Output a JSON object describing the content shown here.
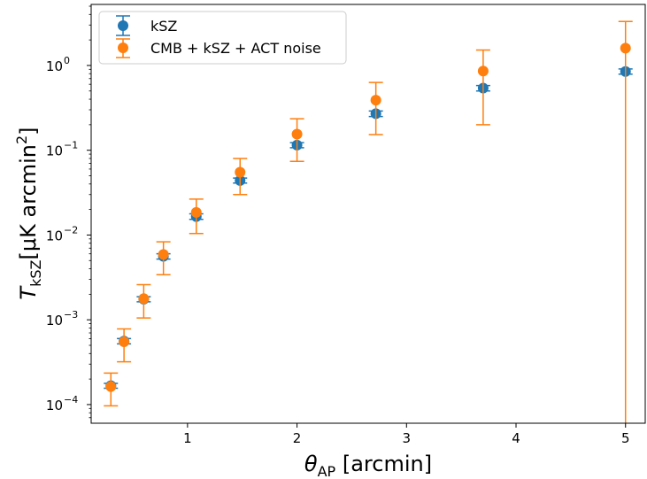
{
  "chart_data": {
    "type": "scatter",
    "yscale": "log",
    "xlabel": {
      "main": "θ",
      "sub": "AP",
      "rest": " [arcmin]"
    },
    "ylabel": {
      "main": "T",
      "sub": "kSZ",
      "rest_pre": "[μK arcmin",
      "sup": "2",
      "rest_post": "]"
    },
    "xlim": [
      0.12,
      5.18
    ],
    "ylim_exp": [
      -4.22,
      0.72
    ],
    "x_ticks": [
      {
        "value": 1,
        "label": "1"
      },
      {
        "value": 2,
        "label": "2"
      },
      {
        "value": 3,
        "label": "3"
      },
      {
        "value": 4,
        "label": "4"
      },
      {
        "value": 5,
        "label": "5"
      }
    ],
    "y_ticks": [
      {
        "exp": -4,
        "label": "10",
        "sup": "−4"
      },
      {
        "exp": -3,
        "label": "10",
        "sup": "−3"
      },
      {
        "exp": -2,
        "label": "10",
        "sup": "−2"
      },
      {
        "exp": -1,
        "label": "10",
        "sup": "−1"
      },
      {
        "exp": 0,
        "label": "10",
        "sup": "0"
      }
    ],
    "grid": false,
    "legend_position": "top-left",
    "series": [
      {
        "name": "kSZ",
        "color": "#1f77b4",
        "points": [
          {
            "x": 0.3,
            "y": 0.000167,
            "lo": 0.000156,
            "hi": 0.000178
          },
          {
            "x": 0.42,
            "y": 0.00056,
            "lo": 0.00052,
            "hi": 0.0006
          },
          {
            "x": 0.6,
            "y": 0.00175,
            "lo": 0.00163,
            "hi": 0.00187
          },
          {
            "x": 0.78,
            "y": 0.0056,
            "lo": 0.0052,
            "hi": 0.006
          },
          {
            "x": 1.08,
            "y": 0.0165,
            "lo": 0.0153,
            "hi": 0.0178
          },
          {
            "x": 1.48,
            "y": 0.044,
            "lo": 0.041,
            "hi": 0.047
          },
          {
            "x": 2.0,
            "y": 0.115,
            "lo": 0.107,
            "hi": 0.123
          },
          {
            "x": 2.72,
            "y": 0.27,
            "lo": 0.25,
            "hi": 0.29
          },
          {
            "x": 3.7,
            "y": 0.54,
            "lo": 0.5,
            "hi": 0.58
          },
          {
            "x": 5.0,
            "y": 0.85,
            "lo": 0.79,
            "hi": 0.91
          }
        ]
      },
      {
        "name": "CMB + kSZ + ACT noise",
        "color": "#ff7f0e",
        "points": [
          {
            "x": 0.3,
            "y": 0.000163,
            "lo": 9.65e-05,
            "hi": 0.000235
          },
          {
            "x": 0.42,
            "y": 0.00055,
            "lo": 0.00032,
            "hi": 0.00078
          },
          {
            "x": 0.6,
            "y": 0.00178,
            "lo": 0.00105,
            "hi": 0.0026
          },
          {
            "x": 0.78,
            "y": 0.0059,
            "lo": 0.0034,
            "hi": 0.0083
          },
          {
            "x": 1.08,
            "y": 0.0185,
            "lo": 0.0104,
            "hi": 0.0265
          },
          {
            "x": 1.48,
            "y": 0.055,
            "lo": 0.03,
            "hi": 0.08
          },
          {
            "x": 2.0,
            "y": 0.155,
            "lo": 0.074,
            "hi": 0.235
          },
          {
            "x": 2.72,
            "y": 0.39,
            "lo": 0.153,
            "hi": 0.63
          },
          {
            "x": 3.7,
            "y": 0.86,
            "lo": 0.2,
            "hi": 1.52
          },
          {
            "x": 5.0,
            "y": 1.6,
            "lo": 1e-07,
            "hi": 3.3
          }
        ]
      }
    ]
  }
}
